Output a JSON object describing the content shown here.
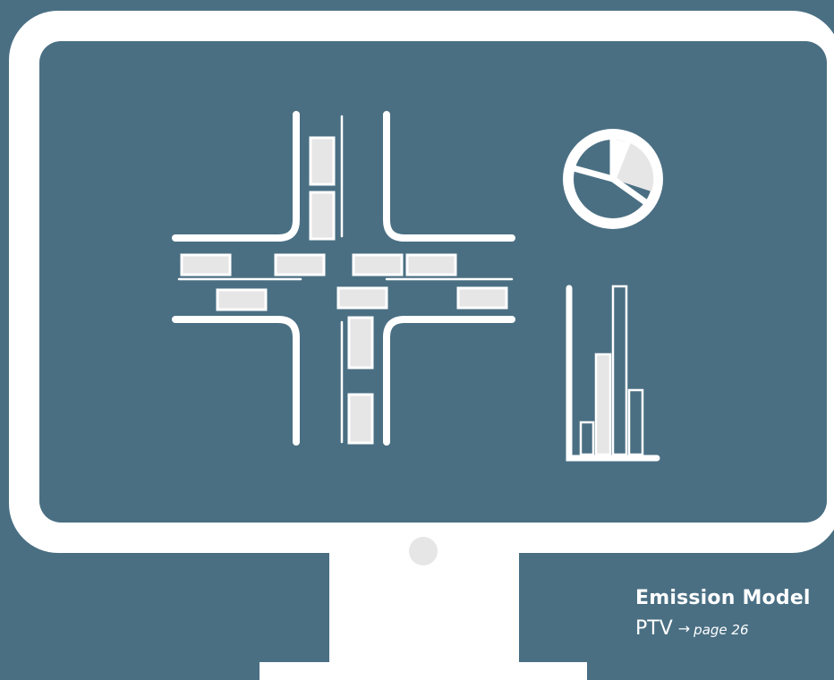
{
  "caption": {
    "title": "Emission Model",
    "source": "PTV",
    "arrow": "→",
    "page_ref": "page 26"
  },
  "colors": {
    "background": "#4a6f83",
    "screen": "#4a6f83",
    "frame": "#ffffff",
    "vehicle": "#e6e6e6",
    "stand": "#ffffff"
  },
  "icons": {
    "monitor": "monitor-icon",
    "intersection": "traffic-intersection-icon",
    "pie": "pie-chart-icon",
    "bars": "bar-chart-icon"
  }
}
